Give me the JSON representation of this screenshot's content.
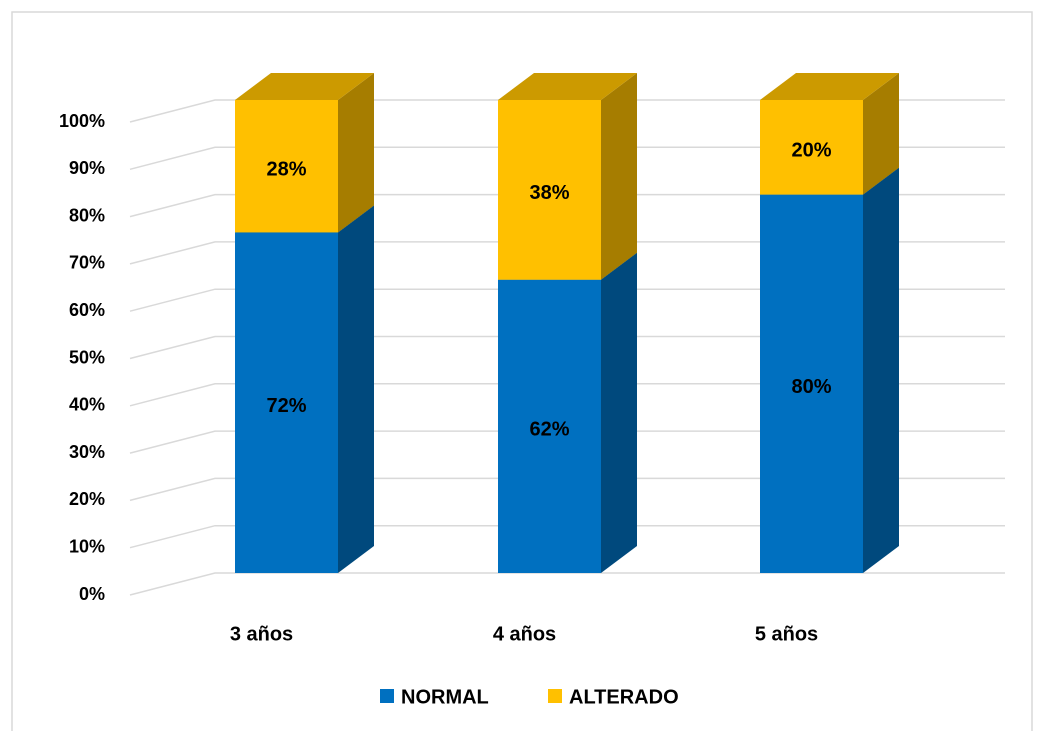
{
  "chart_data": {
    "type": "bar3d_stacked",
    "categories": [
      "3 años",
      "4 años",
      "5 años"
    ],
    "series": [
      {
        "name": "NORMAL",
        "color": "#0070c0",
        "values": [
          72,
          62,
          80
        ],
        "value_labels": [
          "72%",
          "62%",
          "80%"
        ]
      },
      {
        "name": "ALTERADO",
        "color": "#ffc000",
        "values": [
          28,
          38,
          20
        ],
        "value_labels": [
          "28%",
          "38%",
          "20%"
        ]
      }
    ],
    "ylim": [
      0,
      100
    ],
    "yticks": [
      {
        "value": 0,
        "label": "0%"
      },
      {
        "value": 10,
        "label": "10%"
      },
      {
        "value": 20,
        "label": "20%"
      },
      {
        "value": 30,
        "label": "30%"
      },
      {
        "value": 40,
        "label": "40%"
      },
      {
        "value": 50,
        "label": "50%"
      },
      {
        "value": 60,
        "label": "60%"
      },
      {
        "value": 70,
        "label": "70%"
      },
      {
        "value": 80,
        "label": "80%"
      },
      {
        "value": 90,
        "label": "90%"
      },
      {
        "value": 100,
        "label": "100%"
      }
    ],
    "grid": true,
    "legend": "bottom"
  }
}
